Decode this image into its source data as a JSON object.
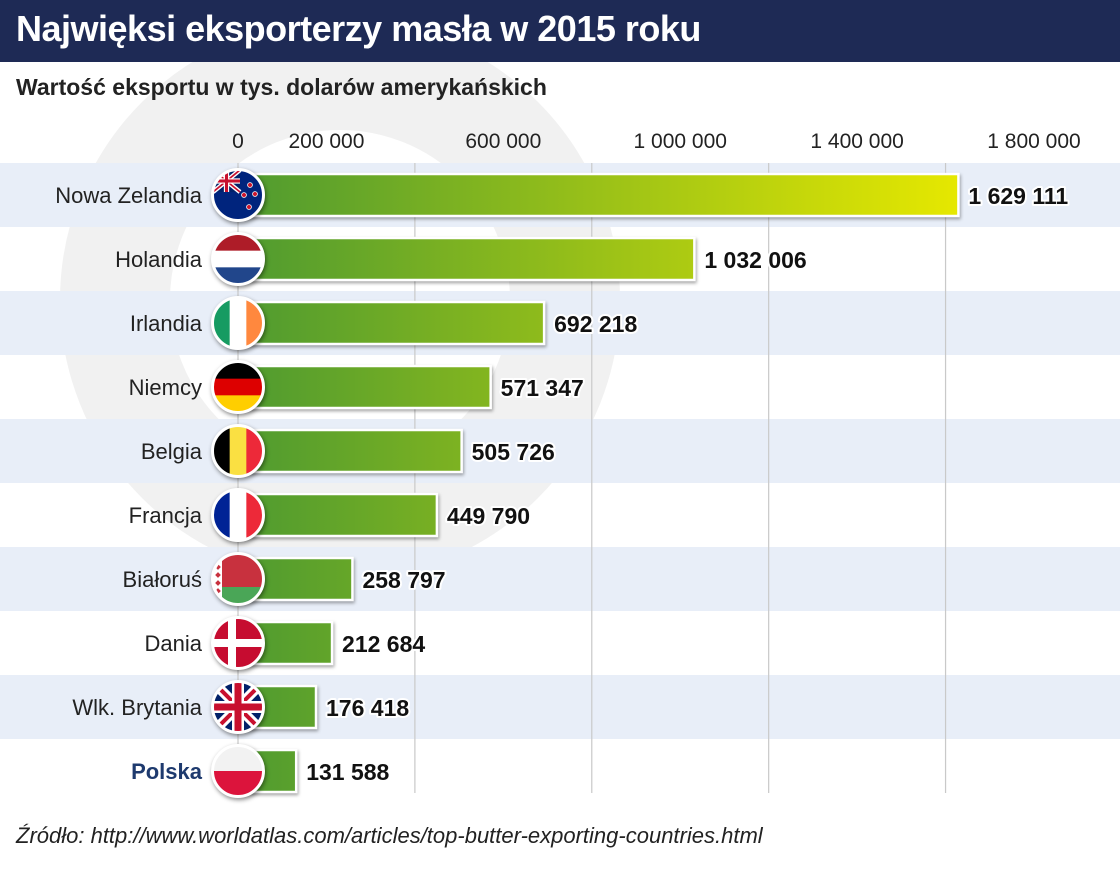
{
  "header": {
    "title": "Najwięksi eksporterzy masła w 2015 roku",
    "subtitle": "Wartość eksportu w tys. dolarów amerykańskich"
  },
  "footer": {
    "source": "Źródło: http://www.worldatlas.com/articles/top-butter-exporting-countries.html"
  },
  "colors": {
    "header_bg": "#1e2a55",
    "band": "#e8eef8",
    "bar_start": "#4e9a30",
    "bar_end": "#e6e800",
    "highlight_label": "#1e3a6e"
  },
  "chart_data": {
    "type": "bar",
    "orientation": "horizontal",
    "title": "Najwięksi eksporterzy masła w 2015 roku",
    "xlabel": "Wartość eksportu w tys. dolarów amerykańskich",
    "ylabel": "",
    "xlim": [
      0,
      1800000
    ],
    "gridlines": [
      0,
      400000,
      800000,
      1200000,
      1600000
    ],
    "ticks": [
      {
        "value": 0,
        "label": "0"
      },
      {
        "value": 200000,
        "label": "200 000"
      },
      {
        "value": 600000,
        "label": "600 000"
      },
      {
        "value": 1000000,
        "label": "1 000 000"
      },
      {
        "value": 1400000,
        "label": "1 400 000"
      },
      {
        "value": 1800000,
        "label": "1 800 000"
      }
    ],
    "categories": [
      "Nowa Zelandia",
      "Holandia",
      "Irlandia",
      "Niemcy",
      "Belgia",
      "Francja",
      "Białoruś",
      "Dania",
      "Wlk. Brytania",
      "Polska"
    ],
    "values": [
      1629111,
      1032006,
      692218,
      571347,
      505726,
      449790,
      258797,
      212684,
      176418,
      131588
    ],
    "value_labels": [
      "1 629 111",
      "1 032 006",
      "692 218",
      "571 347",
      "505 726",
      "449 790",
      "258 797",
      "212 684",
      "176 418",
      "131 588"
    ],
    "flags": [
      "new-zealand",
      "netherlands",
      "ireland",
      "germany",
      "belgium",
      "france",
      "belarus",
      "denmark",
      "united-kingdom",
      "poland"
    ],
    "highlight": "Polska"
  }
}
